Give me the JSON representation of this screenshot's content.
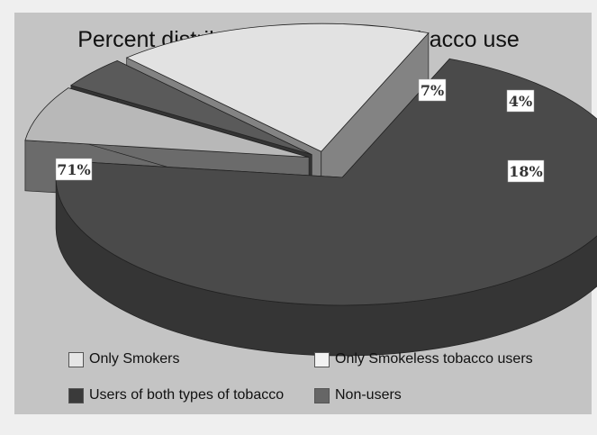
{
  "chart_data": {
    "type": "pie",
    "title": "Percent distribution of adults by tobacco use",
    "categories": [
      "Only Smokers",
      "Only Smokeless tobacco users",
      "Users of both types of tobacco",
      "Non-users"
    ],
    "slices": [
      {
        "name": "Non-users",
        "value": 71,
        "label": "71%",
        "color": "#4a4a4a"
      },
      {
        "name": "Only Smokers",
        "value": 7,
        "label": "7%",
        "color": "#b8b8b8"
      },
      {
        "name": "Users of both types of tobacco",
        "value": 4,
        "label": "4%",
        "color": "#5a5a5a"
      },
      {
        "name": "Only Smokeless tobacco users",
        "value": 18,
        "label": "18%",
        "color": "#e2e2e2"
      }
    ],
    "legend": [
      {
        "label": "Only Smokers",
        "color": "#e6e6e6"
      },
      {
        "label": "Only Smokeless tobacco users",
        "color": "#f2f2f2"
      },
      {
        "label": "Users of both types of tobacco",
        "color": "#3a3a3a"
      },
      {
        "label": "Non-users",
        "color": "#666666"
      }
    ],
    "legend_position": "bottom",
    "style": "3d-exploded"
  }
}
